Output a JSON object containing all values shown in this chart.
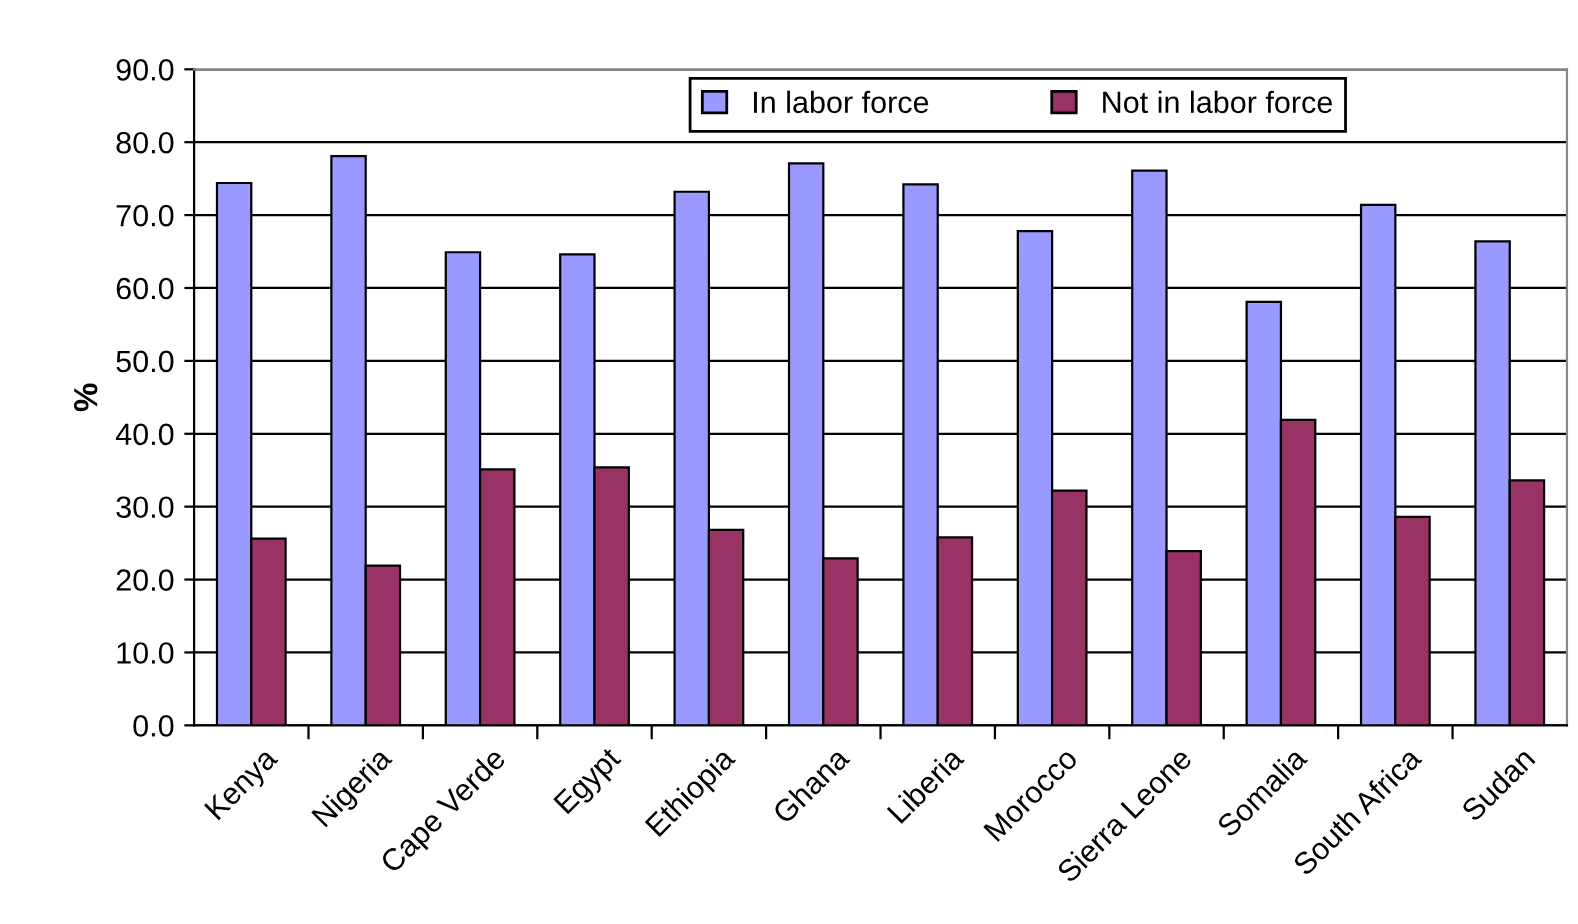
{
  "chart_data": {
    "type": "bar",
    "ylabel": "%",
    "categories": [
      "Kenya",
      "Nigeria",
      "Cape Verde",
      "Egypt",
      "Ethiopia",
      "Ghana",
      "Liberia",
      "Morocco",
      "Sierra Leone",
      "Somalia",
      "South Africa",
      "Sudan"
    ],
    "series": [
      {
        "name": "In labor force",
        "color": "#9999ff",
        "values": [
          74.4,
          78.1,
          64.9,
          64.6,
          73.2,
          77.1,
          74.2,
          67.8,
          76.1,
          58.1,
          71.4,
          66.4
        ]
      },
      {
        "name": "Not in labor force",
        "color": "#993366",
        "values": [
          25.6,
          21.9,
          35.1,
          35.4,
          26.8,
          22.9,
          25.8,
          32.2,
          23.9,
          41.9,
          28.6,
          33.6
        ]
      }
    ],
    "ylim": [
      0,
      90
    ],
    "yticks": [
      {
        "value": 0,
        "label": "0.0"
      },
      {
        "value": 10,
        "label": "10.0"
      },
      {
        "value": 20,
        "label": "20.0"
      },
      {
        "value": 30,
        "label": "30.0"
      },
      {
        "value": 40,
        "label": "40.0"
      },
      {
        "value": 50,
        "label": "50.0"
      },
      {
        "value": 60,
        "label": "60.0"
      },
      {
        "value": 70,
        "label": "70.0"
      },
      {
        "value": 80,
        "label": "80.0"
      },
      {
        "value": 90,
        "label": "90.0"
      }
    ],
    "grid": "y",
    "legend": "top"
  }
}
